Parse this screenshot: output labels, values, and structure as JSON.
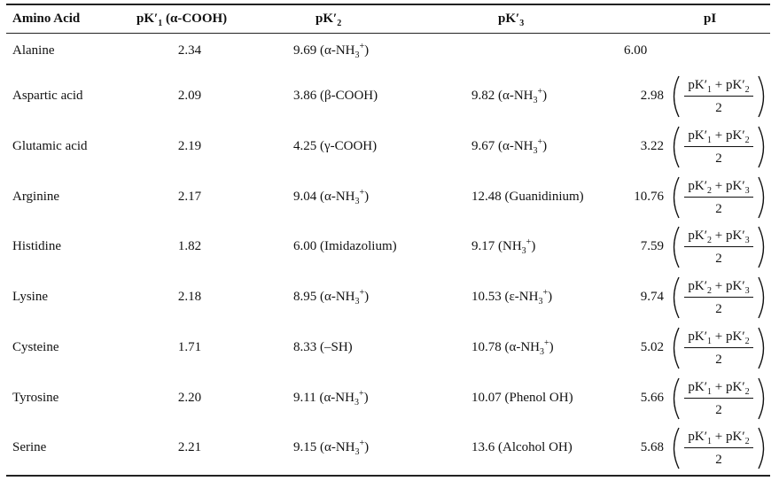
{
  "headers": {
    "amino_acid": "Amino Acid",
    "pk1": {
      "main": "pK′",
      "sub": "1",
      "suffix": " (α-COOH)"
    },
    "pk2": {
      "main": "pK′",
      "sub": "2"
    },
    "pk3": {
      "main": "pK′",
      "sub": "3"
    },
    "pi": "pI"
  },
  "rows": [
    {
      "name": "Alanine",
      "pk1": "2.34",
      "pk2": {
        "pre": "9.69 (α-NH",
        "sub": "3",
        "sup": "+",
        "post": ")"
      },
      "pk3": null,
      "pi": "6.00",
      "formula": null
    },
    {
      "name": "Aspartic acid",
      "pk1": "2.09",
      "pk2": {
        "pre": "3.86 (β-COOH)"
      },
      "pk3": {
        "pre": "9.82 (α-NH",
        "sub": "3",
        "sup": "+",
        "post": ")"
      },
      "pi": "2.98",
      "formula": {
        "a": "1",
        "b": "2",
        "den": "2"
      }
    },
    {
      "name": "Glutamic acid",
      "pk1": "2.19",
      "pk2": {
        "pre": "4.25 (γ-COOH)"
      },
      "pk3": {
        "pre": "9.67 (α-NH",
        "sub": "3",
        "sup": "+",
        "post": ")"
      },
      "pi": "3.22",
      "formula": {
        "a": "1",
        "b": "2",
        "den": "2"
      }
    },
    {
      "name": "Arginine",
      "pk1": "2.17",
      "pk2": {
        "pre": "9.04 (α-NH",
        "sub": "3",
        "sup": "+",
        "post": ")"
      },
      "pk3": {
        "pre": "12.48 (Guanidinium)"
      },
      "pi": "10.76",
      "formula": {
        "a": "2",
        "b": "3",
        "den": "2"
      }
    },
    {
      "name": "Histidine",
      "pk1": "1.82",
      "pk2": {
        "pre": "6.00 (Imidazolium)"
      },
      "pk3": {
        "pre": "9.17 (NH",
        "sub": "3",
        "sup": "+",
        "post": ")"
      },
      "pi": "7.59",
      "formula": {
        "a": "2",
        "b": "3",
        "den": "2"
      }
    },
    {
      "name": "Lysine",
      "pk1": "2.18",
      "pk2": {
        "pre": "8.95 (α-NH",
        "sub": "3",
        "sup": "+",
        "post": ")"
      },
      "pk3": {
        "pre": "10.53 (ε-NH",
        "sub": "3",
        "sup": "+",
        "post": ")"
      },
      "pi": "9.74",
      "formula": {
        "a": "2",
        "b": "3",
        "den": "2"
      }
    },
    {
      "name": "Cysteine",
      "pk1": "1.71",
      "pk2": {
        "pre": "8.33 (–SH)"
      },
      "pk3": {
        "pre": "10.78 (α-NH",
        "sub": "3",
        "sup": "+",
        "post": ")"
      },
      "pi": "5.02",
      "formula": {
        "a": "1",
        "b": "2",
        "den": "2"
      }
    },
    {
      "name": "Tyrosine",
      "pk1": "2.20",
      "pk2": {
        "pre": "9.11 (α-NH",
        "sub": "3",
        "sup": "+",
        "post": ")"
      },
      "pk3": {
        "pre": "10.07 (Phenol OH)"
      },
      "pi": "5.66",
      "formula": {
        "a": "1",
        "b": "2",
        "den": "2"
      }
    },
    {
      "name": "Serine",
      "pk1": "2.21",
      "pk2": {
        "pre": "9.15 (α-NH",
        "sub": "3",
        "sup": "+",
        "post": ")"
      },
      "pk3": {
        "pre": "13.6 (Alcohol OH)"
      },
      "pi": "5.68",
      "formula": {
        "a": "1",
        "b": "2",
        "den": "2"
      }
    }
  ],
  "formula_text": {
    "pk": "pK′",
    "plus": " + "
  }
}
